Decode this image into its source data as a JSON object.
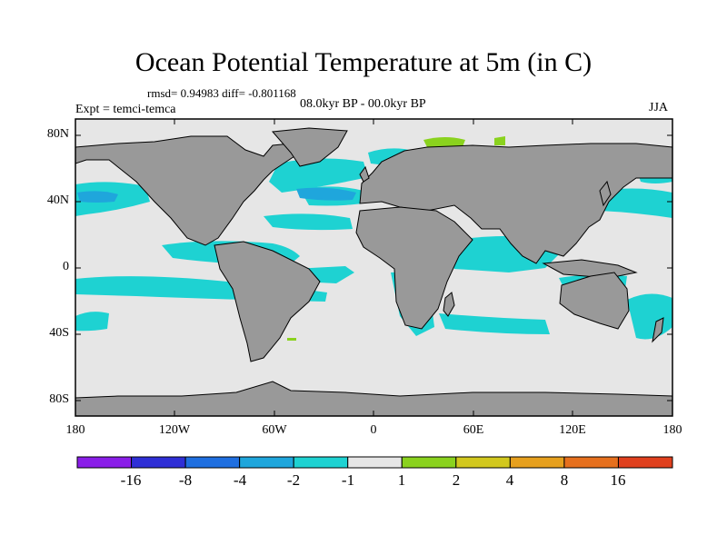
{
  "title": "Ocean Potential Temperature at 5m (in C)",
  "stats_text": "rmsd= 0.94983 diff= -0.801168",
  "period_text": "08.0kyr BP - 00.0kyr BP",
  "experiment_text": "Expt = temci-temca",
  "season_text": "JJA",
  "lat_labels": [
    "80N",
    "40N",
    "0",
    "40S",
    "80S"
  ],
  "lon_labels": [
    "180",
    "120W",
    "60W",
    "0",
    "60E",
    "120E",
    "180"
  ],
  "colorbar": {
    "labels": [
      "-16",
      "-8",
      "-4",
      "-2",
      "-1",
      "1",
      "2",
      "4",
      "8",
      "16"
    ],
    "colors": [
      "#8a1ee8",
      "#2f2fd6",
      "#1f6fe0",
      "#1fa6dc",
      "#1ed2d2",
      "#e6e6e6",
      "#8ad21e",
      "#d2c81e",
      "#e6a01e",
      "#e6701e",
      "#e0401e"
    ]
  },
  "map_colors": {
    "land": "#999999",
    "ocean_no_change": "#e6e6e6",
    "ocean_cool": "#1ed2d2",
    "ocean_cooler": "#1fa6dc",
    "ocean_warm": "#8ad21e"
  }
}
